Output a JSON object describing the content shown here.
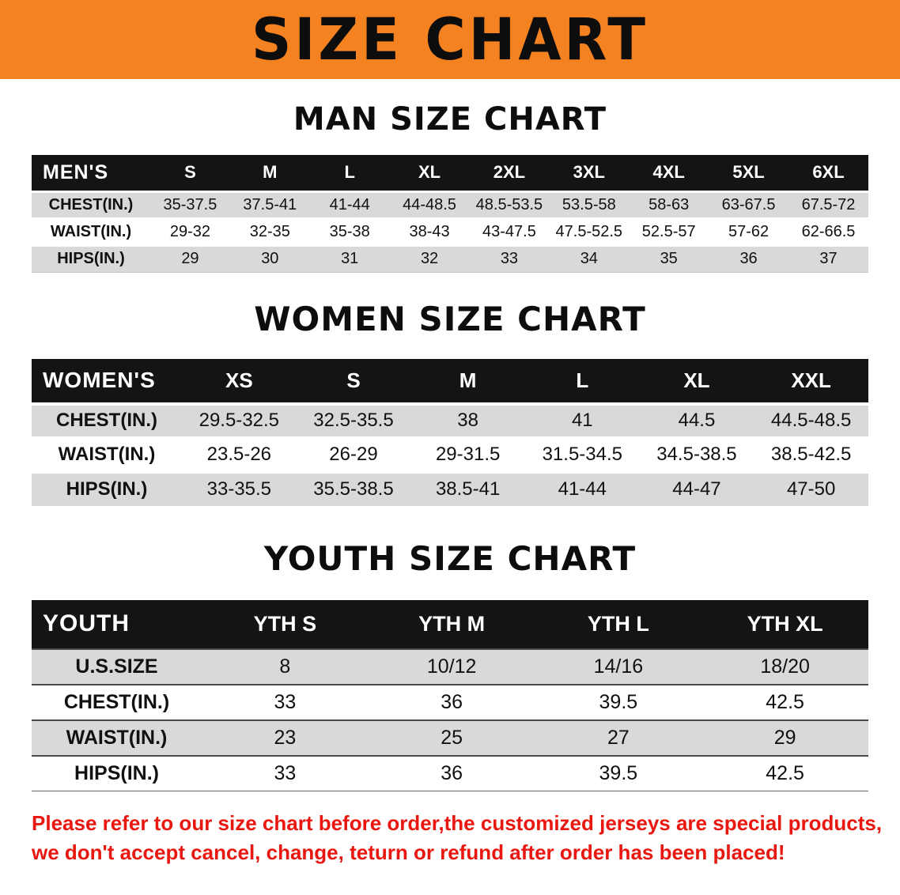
{
  "banner": {
    "title": "SIZE CHART",
    "background": "#f58220",
    "text_color": "#0d0d0d"
  },
  "sections": [
    {
      "heading": "MAN SIZE CHART",
      "table": {
        "group_label": "MEN'S",
        "columns": [
          "S",
          "M",
          "L",
          "XL",
          "2XL",
          "3XL",
          "4XL",
          "5XL",
          "6XL"
        ],
        "rows": [
          {
            "label": "CHEST(IN.)",
            "values": [
              "35-37.5",
              "37.5-41",
              "41-44",
              "44-48.5",
              "48.5-53.5",
              "53.5-58",
              "58-63",
              "63-67.5",
              "67.5-72"
            ]
          },
          {
            "label": "WAIST(IN.)",
            "values": [
              "29-32",
              "32-35",
              "35-38",
              "38-43",
              "43-47.5",
              "47.5-52.5",
              "52.5-57",
              "57-62",
              "62-66.5"
            ]
          },
          {
            "label": "HIPS(IN.)",
            "values": [
              "29",
              "30",
              "31",
              "32",
              "33",
              "34",
              "35",
              "36",
              "37"
            ]
          }
        ]
      }
    },
    {
      "heading": "WOMEN SIZE CHART",
      "table": {
        "group_label": "WOMEN'S",
        "columns": [
          "XS",
          "S",
          "M",
          "L",
          "XL",
          "XXL"
        ],
        "rows": [
          {
            "label": "CHEST(IN.)",
            "values": [
              "29.5-32.5",
              "32.5-35.5",
              "38",
              "41",
              "44.5",
              "44.5-48.5"
            ]
          },
          {
            "label": "WAIST(IN.)",
            "values": [
              "23.5-26",
              "26-29",
              "29-31.5",
              "31.5-34.5",
              "34.5-38.5",
              "38.5-42.5"
            ]
          },
          {
            "label": "HIPS(IN.)",
            "values": [
              "33-35.5",
              "35.5-38.5",
              "38.5-41",
              "41-44",
              "44-47",
              "47-50"
            ]
          }
        ]
      }
    },
    {
      "heading": "YOUTH SIZE CHART",
      "table": {
        "group_label": "YOUTH",
        "columns": [
          "YTH S",
          "YTH M",
          "YTH L",
          "YTH XL"
        ],
        "rows": [
          {
            "label": "U.S.SIZE",
            "values": [
              "8",
              "10/12",
              "14/16",
              "18/20"
            ]
          },
          {
            "label": "CHEST(IN.)",
            "values": [
              "33",
              "36",
              "39.5",
              "42.5"
            ]
          },
          {
            "label": "WAIST(IN.)",
            "values": [
              "23",
              "25",
              "27",
              "29"
            ]
          },
          {
            "label": "HIPS(IN.)",
            "values": [
              "33",
              "36",
              "39.5",
              "42.5"
            ]
          }
        ]
      }
    }
  ],
  "footer": {
    "lines": [
      "Please refer to our size chart before order,the customized jerseys are special products,",
      "we don't accept cancel, change, teturn or refund after order has been placed!"
    ],
    "text_color": "#e8170f"
  },
  "colors": {
    "header_row_bg": "#141414",
    "row_stripe": "#d9d9d9",
    "banner_orange": "#f58220"
  }
}
